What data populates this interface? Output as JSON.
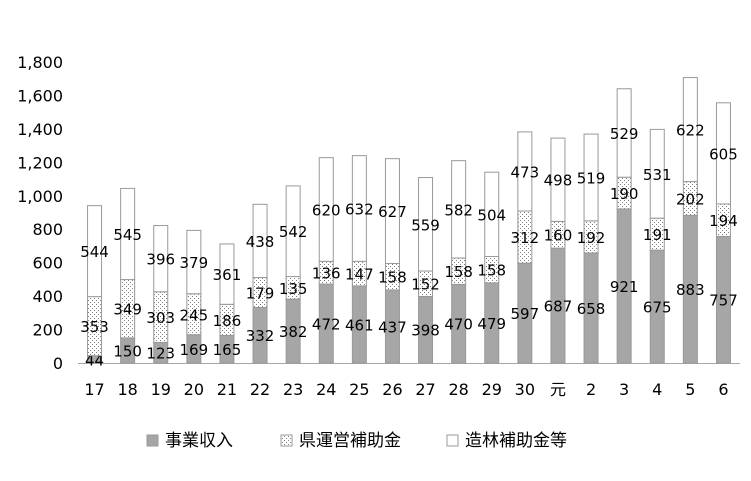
{
  "chart_data": {
    "type": "bar",
    "stacked": true,
    "title": "",
    "xlabel": "",
    "ylabel": "",
    "ylim": [
      0,
      1800
    ],
    "yticks": [
      "0",
      "200",
      "400",
      "600",
      "800",
      "1,000",
      "1,200",
      "1,400",
      "1,600",
      "1,800"
    ],
    "grid": false,
    "legend_position": "bottom",
    "categories": [
      "17",
      "18",
      "19",
      "20",
      "21",
      "22",
      "23",
      "24",
      "25",
      "26",
      "27",
      "28",
      "29",
      "30",
      "元",
      "2",
      "3",
      "4",
      "5",
      "6"
    ],
    "series": [
      {
        "name": "事業収入",
        "pattern": "solid",
        "values": [
          44,
          150,
          123,
          169,
          165,
          332,
          382,
          472,
          461,
          437,
          398,
          470,
          479,
          597,
          687,
          658,
          921,
          675,
          883,
          757
        ]
      },
      {
        "name": "県運営補助金",
        "pattern": "dotted",
        "values": [
          353,
          349,
          303,
          245,
          186,
          179,
          135,
          136,
          147,
          158,
          152,
          158,
          158,
          312,
          160,
          192,
          190,
          191,
          202,
          194
        ]
      },
      {
        "name": "造林補助金等",
        "pattern": "blank",
        "values": [
          544,
          545,
          396,
          379,
          361,
          438,
          542,
          620,
          632,
          627,
          559,
          582,
          504,
          473,
          498,
          519,
          529,
          531,
          622,
          605
        ]
      }
    ]
  },
  "colors": {
    "series_fill": [
      "#a6a6a6",
      "#ffffff",
      "#ffffff"
    ],
    "series_stroke": "#999999",
    "dot_color": "#7f7f7f",
    "axis_color": "#a6a6a6",
    "text_color": "#000000"
  }
}
